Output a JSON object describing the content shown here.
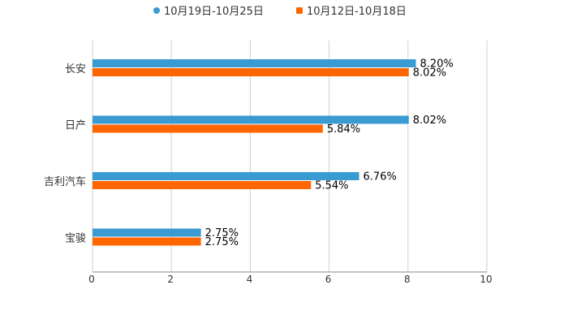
{
  "chart_data": {
    "type": "bar",
    "orientation": "horizontal",
    "title": "",
    "xlabel": "",
    "ylabel": "",
    "categories": [
      "长安",
      "日产",
      "吉利汽车",
      "宝骏"
    ],
    "series": [
      {
        "name": "10月19日-10月25日",
        "color": "#3a9ad2",
        "values": [
          8.2,
          8.02,
          6.76,
          2.75
        ],
        "labels": [
          "8.20%",
          "8.02%",
          "6.76%",
          "2.75%"
        ]
      },
      {
        "name": "10月12日-10月18日",
        "color": "#ff6600",
        "values": [
          8.02,
          5.84,
          5.54,
          2.75
        ],
        "labels": [
          "8.02%",
          "5.84%",
          "5.54%",
          "2.75%"
        ]
      }
    ],
    "xlim": [
      0,
      10
    ],
    "ticks": [
      0,
      2,
      4,
      6,
      8,
      10
    ],
    "tick_labels": [
      "0",
      "2",
      "4",
      "6",
      "8",
      "10"
    ],
    "grid": true,
    "legend_position": "top-center"
  }
}
